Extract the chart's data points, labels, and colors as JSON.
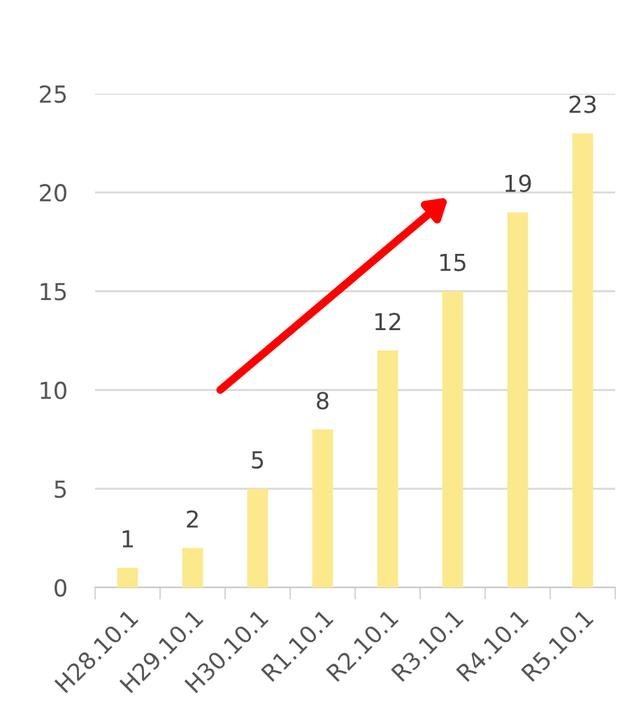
{
  "chart_data": {
    "type": "bar",
    "categories": [
      "H28.10.1",
      "H29.10.1",
      "H30.10.1",
      "R1.10.1",
      "R2.10.1",
      "R3.10.1",
      "R4.10.1",
      "R5.10.1"
    ],
    "values": [
      1,
      2,
      5,
      8,
      12,
      15,
      19,
      23
    ],
    "color": "#fce98c",
    "ylim": [
      0,
      25
    ],
    "yticks": [
      0,
      5,
      10,
      15,
      20,
      25
    ],
    "grid": "y",
    "data_labels": true
  }
}
